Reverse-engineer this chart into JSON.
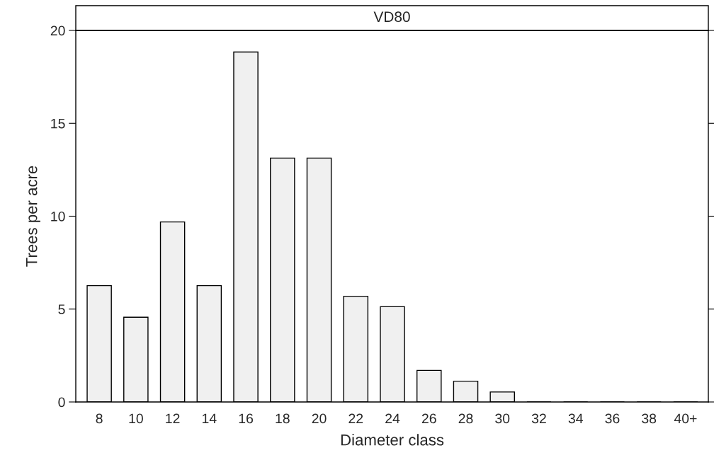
{
  "chart_data": {
    "type": "bar",
    "title": "VD80",
    "xlabel": "Diameter class",
    "ylabel": "Trees per acre",
    "categories": [
      "8",
      "10",
      "12",
      "14",
      "16",
      "18",
      "20",
      "22",
      "24",
      "26",
      "28",
      "30",
      "32",
      "34",
      "36",
      "38",
      "40+"
    ],
    "values": [
      6.26,
      4.56,
      9.69,
      6.26,
      18.84,
      13.13,
      13.13,
      5.69,
      5.13,
      1.7,
      1.12,
      0.54,
      0,
      0,
      0,
      0,
      0
    ],
    "color": "#f0f0f0",
    "ylim": [
      0,
      20
    ],
    "yticks": [
      0,
      5,
      10,
      15,
      20
    ],
    "grid": false
  }
}
